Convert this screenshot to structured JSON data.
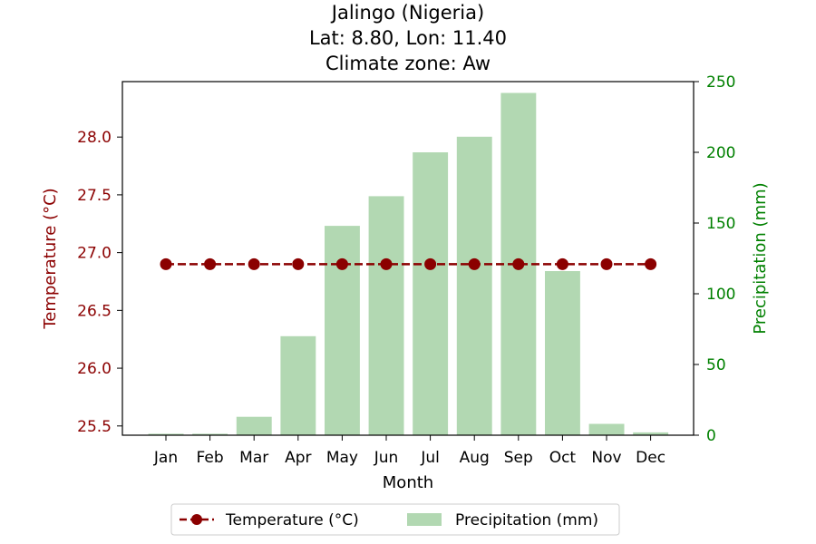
{
  "chart_data": {
    "type": "bar",
    "title_lines": [
      "Jalingo (Nigeria)",
      "Lat: 8.80, Lon: 11.40",
      "Climate zone: Aw"
    ],
    "xlabel": "Month",
    "ylabel_left": "Temperature (°C)",
    "ylabel_right": "Precipitation (mm)",
    "categories": [
      "Jan",
      "Feb",
      "Mar",
      "Apr",
      "May",
      "Jun",
      "Jul",
      "Aug",
      "Sep",
      "Oct",
      "Nov",
      "Dec"
    ],
    "series": [
      {
        "name": "Temperature (°C)",
        "kind": "line",
        "axis": "left",
        "color": "#8b0000",
        "values": [
          26.9,
          26.9,
          26.9,
          26.9,
          26.9,
          26.9,
          26.9,
          26.9,
          26.9,
          26.9,
          26.9,
          26.9
        ]
      },
      {
        "name": "Precipitation (mm)",
        "kind": "bar",
        "axis": "right",
        "color": "#b2d8b2",
        "values": [
          1,
          1,
          13,
          70,
          148,
          169,
          200,
          211,
          242,
          116,
          8,
          2
        ]
      }
    ],
    "ylim_left": [
      25.42,
      28.48
    ],
    "yticks_left": [
      "25.5",
      "26.0",
      "26.5",
      "27.0",
      "27.5",
      "28.0"
    ],
    "ylim_right": [
      0,
      250
    ],
    "yticks_right": [
      "0",
      "50",
      "100",
      "150",
      "200",
      "250"
    ],
    "left_axis_color": "#8b0000",
    "right_axis_color": "#008000",
    "legend_position": "bottom-center",
    "grid": false
  }
}
